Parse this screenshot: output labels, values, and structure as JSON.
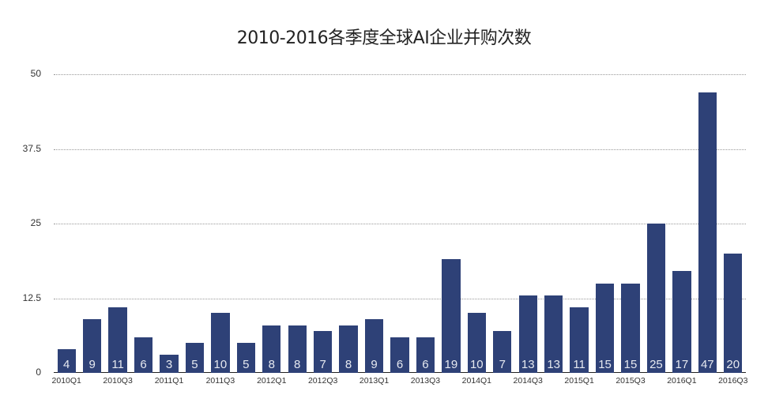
{
  "chart_data": {
    "type": "bar",
    "title": "2010-2016各季度全球AI企业并购次数",
    "xlabel": "",
    "ylabel": "",
    "ylim": [
      0,
      50
    ],
    "yticks": [
      "0",
      "12.5",
      "25",
      "37.5",
      "50"
    ],
    "grid": true,
    "legend": null,
    "bar_color": "#2e4177",
    "categories": [
      "2010Q1",
      "2010Q2",
      "2010Q3",
      "2010Q4",
      "2011Q1",
      "2011Q2",
      "2011Q3",
      "2011Q4",
      "2012Q1",
      "2012Q2",
      "2012Q3",
      "2012Q4",
      "2013Q1",
      "2013Q2",
      "2013Q3",
      "2013Q4",
      "2014Q1",
      "2014Q2",
      "2014Q3",
      "2014Q4",
      "2015Q1",
      "2015Q2",
      "2015Q3",
      "2015Q4",
      "2016Q1",
      "2016Q2",
      "2016Q3"
    ],
    "x_tick_labels": [
      "2010Q1",
      "2010Q3",
      "2011Q1",
      "2011Q3",
      "2012Q1",
      "2012Q3",
      "2013Q1",
      "2013Q3",
      "2014Q1",
      "2014Q3",
      "2015Q1",
      "2015Q3",
      "2016Q1",
      "2016Q3"
    ],
    "values": [
      4,
      9,
      11,
      6,
      3,
      5,
      10,
      5,
      8,
      8,
      7,
      8,
      9,
      6,
      6,
      19,
      10,
      7,
      13,
      13,
      11,
      15,
      15,
      25,
      17,
      47,
      20
    ]
  }
}
